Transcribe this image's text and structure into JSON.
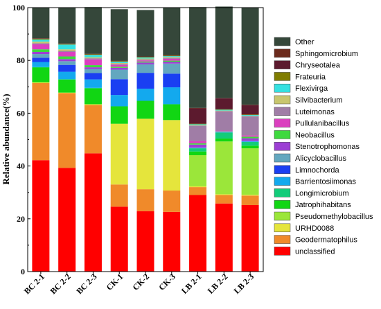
{
  "chart_data": {
    "type": "bar",
    "stacked": true,
    "ylabel": "Relative abundance(%)",
    "xlabel": "",
    "ylim": [
      0,
      100
    ],
    "yticks": [
      0,
      20,
      40,
      60,
      80,
      100
    ],
    "categories": [
      "BC 2-1",
      "BC 2-2",
      "BC 2-3",
      "CK-1",
      "CK-2",
      "CK-3",
      "LB 2-1",
      "LB 2-2",
      "LB 2-3"
    ],
    "legend_position": "right",
    "series": [
      {
        "name": "unclassified",
        "color": "#ff0000",
        "values": [
          42.2,
          39.3,
          44.8,
          24.6,
          22.9,
          22.6,
          29.0,
          25.8,
          25.2
        ]
      },
      {
        "name": "Geodermatophilus",
        "color": "#f08a2a",
        "values": [
          29.2,
          28.3,
          18.3,
          8.4,
          8.3,
          8.1,
          3.0,
          3.2,
          3.6
        ]
      },
      {
        "name": "URHD0088",
        "color": "#e5e53c",
        "values": [
          0.3,
          0.2,
          0.3,
          23.0,
          26.7,
          26.7,
          0.3,
          0.3,
          0.3
        ]
      },
      {
        "name": "Pseudomethylobacillus",
        "color": "#9be63a",
        "values": [
          0,
          0,
          0,
          0,
          0,
          0,
          11.8,
          20.0,
          17.6
        ]
      },
      {
        "name": "Jatrophihabitans",
        "color": "#11d613",
        "values": [
          5.6,
          4.9,
          6.0,
          6.6,
          6.8,
          6.0,
          1.4,
          1.1,
          1.0
        ]
      },
      {
        "name": "Longimicrobium",
        "color": "#13cc7a",
        "values": [
          0.2,
          0.2,
          0.2,
          0,
          0,
          0,
          1.2,
          2.3,
          1.4
        ]
      },
      {
        "name": "Barrientosiimonas",
        "color": "#13a9ee",
        "values": [
          1.9,
          2.8,
          3.2,
          4.3,
          4.6,
          6.4,
          0.1,
          0.1,
          0.2
        ]
      },
      {
        "name": "Limnochorda",
        "color": "#1a3ff2",
        "values": [
          1.6,
          2.6,
          2.4,
          6.0,
          6.0,
          5.2,
          0.1,
          0.1,
          0.1
        ]
      },
      {
        "name": "Alicyclobacillus",
        "color": "#63a7bf",
        "values": [
          1.4,
          1.4,
          1.5,
          3.6,
          3.2,
          3.8,
          0.1,
          0.1,
          0.1
        ]
      },
      {
        "name": "Stenotrophomonas",
        "color": "#9c3fd4",
        "values": [
          0.8,
          0.8,
          0.7,
          0.7,
          0.7,
          0.7,
          1.1,
          0.1,
          1.0
        ]
      },
      {
        "name": "Neobacillus",
        "color": "#3ed93e",
        "values": [
          1.0,
          1.0,
          0.8,
          0.4,
          0.4,
          0.4,
          0.5,
          0.1,
          0.6
        ]
      },
      {
        "name": "Pullulanibacillus",
        "color": "#db3fbf",
        "values": [
          1.9,
          1.7,
          2.2,
          0.7,
          0.4,
          0.7,
          0.9,
          0.2,
          0.5
        ]
      },
      {
        "name": "Luteimonas",
        "color": "#a07da6",
        "values": [
          0.4,
          0.4,
          0.4,
          0.4,
          0.4,
          0.4,
          5.8,
          7.4,
          7.2
        ]
      },
      {
        "name": "Silvibacterium",
        "color": "#c8c66e",
        "values": [
          0.6,
          0.6,
          0.4,
          0.3,
          0.3,
          0.3,
          0.2,
          0.2,
          0.2
        ]
      },
      {
        "name": "Flexivirga",
        "color": "#36e1e1",
        "values": [
          0.8,
          1.8,
          0.9,
          0.5,
          0.4,
          0.3,
          0.3,
          0.3,
          0.3
        ]
      },
      {
        "name": "Frateuria",
        "color": "#807d00",
        "values": [
          0.3,
          0.2,
          0.2,
          0.2,
          0.2,
          0.2,
          0.2,
          0.2,
          0.2
        ]
      },
      {
        "name": "Chryseotalea",
        "color": "#5c1a2e",
        "values": [
          0,
          0,
          0,
          0,
          0,
          0,
          5.8,
          4.1,
          3.5
        ]
      },
      {
        "name": "Sphingomicrobium",
        "color": "#6b2a1c",
        "values": [
          0.2,
          0.2,
          0.2,
          0.2,
          0.2,
          0.2,
          0.2,
          0.1,
          0.2
        ]
      },
      {
        "name": "Other",
        "color": "#35473a",
        "values": [
          11.6,
          13.6,
          17.7,
          19.5,
          17.6,
          18.0,
          38.2,
          34.7,
          36.9
        ]
      }
    ]
  }
}
